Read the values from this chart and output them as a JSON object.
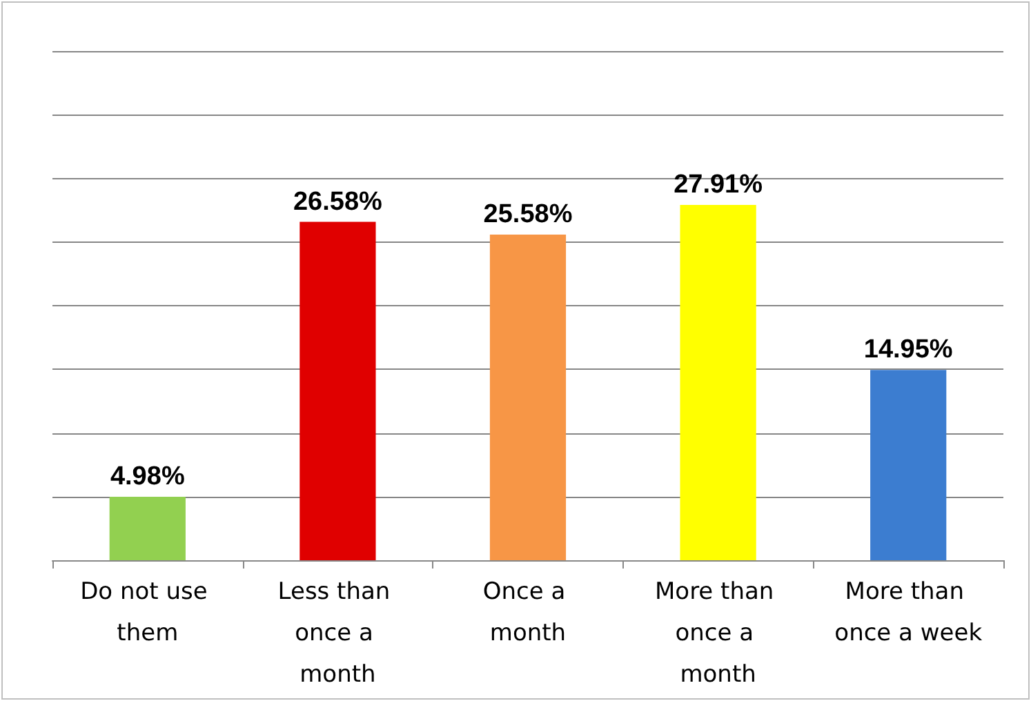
{
  "chart_data": {
    "type": "bar",
    "categories": [
      "Do not use them",
      "Less than once a month",
      "Once a month",
      "More than once a month",
      "More than once a week"
    ],
    "values": [
      4.98,
      26.58,
      25.58,
      27.91,
      14.95
    ],
    "colors": [
      "#92d050",
      "#e00000",
      "#f79646",
      "#ffff00",
      "#3c7dd0"
    ],
    "value_labels": [
      "4.98%",
      "26.58%",
      "25.58%",
      "27.91%",
      "14.95%"
    ],
    "ylim": [
      0,
      40
    ],
    "yticks": [
      {
        "value": 0,
        "label": null
      },
      {
        "value": 5,
        "label": null
      },
      {
        "value": 10,
        "label": null
      },
      {
        "value": 15,
        "label": null
      },
      {
        "value": 20,
        "label": null
      },
      {
        "value": 25,
        "label": null
      },
      {
        "value": 30,
        "label": null
      },
      {
        "value": 35,
        "label": null
      },
      {
        "value": 40,
        "label": null
      }
    ],
    "grid": "y",
    "tick_labels": "x"
  }
}
